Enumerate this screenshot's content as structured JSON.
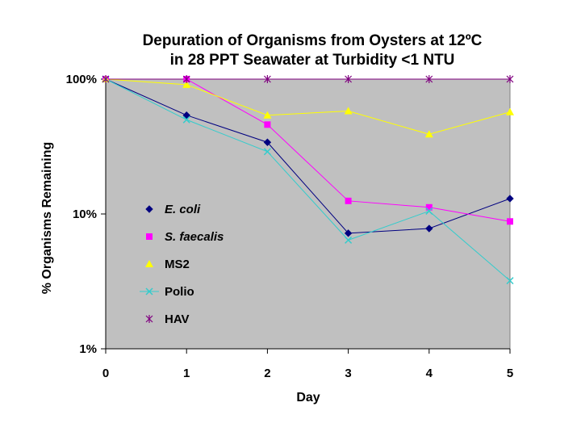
{
  "chart_data": {
    "type": "line",
    "title_line1": "Depuration of Organisms from Oysters at 12ºC",
    "title_line2": "in 28 PPT Seawater at Turbidity <1 NTU",
    "xlabel": "Day",
    "ylabel": "% Organisms Remaining",
    "y_scale": "log",
    "ylim": [
      1,
      100
    ],
    "xlim": [
      0,
      5
    ],
    "x": [
      0,
      1,
      2,
      3,
      4,
      5
    ],
    "x_tick_labels": [
      "0",
      "1",
      "2",
      "3",
      "4",
      "5"
    ],
    "y_ticks": [
      100,
      10,
      1
    ],
    "y_tick_labels": [
      "100%",
      "10%",
      "1%"
    ],
    "grid": false,
    "plot_background": "#c0c0c0",
    "legend_position": "inside-left",
    "series": [
      {
        "name": "E. coli",
        "italic": true,
        "color": "#000080",
        "marker": "diamond",
        "values": [
          100,
          54,
          34,
          7.2,
          7.8,
          13
        ]
      },
      {
        "name": "S. faecalis",
        "italic": true,
        "color": "#ff00ff",
        "marker": "square",
        "values": [
          100,
          100,
          46,
          12.5,
          11.2,
          8.8
        ]
      },
      {
        "name": "MS2",
        "italic": false,
        "color": "#ffff00",
        "marker": "triangle",
        "values": [
          100,
          91,
          54,
          58,
          39,
          57
        ]
      },
      {
        "name": "Polio",
        "italic": false,
        "color": "#33cccc",
        "marker": "x",
        "values": [
          100,
          50,
          29,
          6.4,
          10.5,
          3.2
        ]
      },
      {
        "name": "HAV",
        "italic": false,
        "color": "#800080",
        "marker": "star",
        "values": [
          100,
          100,
          100,
          100,
          100,
          100
        ]
      }
    ]
  }
}
